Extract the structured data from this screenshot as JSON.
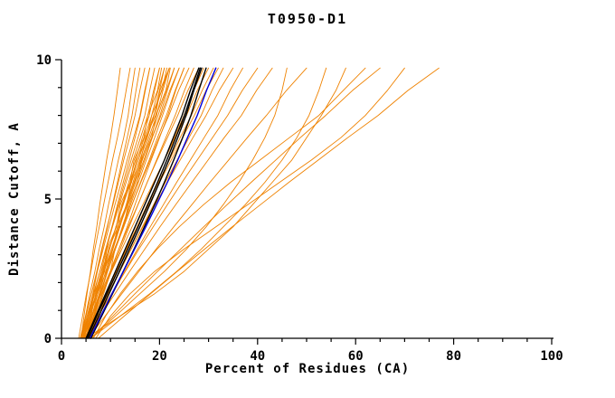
{
  "chart_data": {
    "type": "line",
    "title": "T0950-D1",
    "xlabel": "Percent of Residues (CA)",
    "ylabel": "Distance Cutoff, A",
    "xlim": [
      0,
      100
    ],
    "ylim": [
      0,
      10
    ],
    "x_major_ticks": [
      0,
      20,
      40,
      60,
      80,
      100
    ],
    "x_minor_step": 5,
    "y_major_ticks": [
      0,
      5,
      10
    ],
    "y_minor_step": 1,
    "grid": false,
    "legend": "none",
    "colors": {
      "orange": "#ef8200",
      "black": "#000000",
      "blue": "#0000dd"
    },
    "series_groups": {
      "orange": "model curves",
      "black": "highlighted model curves",
      "blue": "highlighted model curve"
    },
    "y_grid": [
      0,
      0.8,
      1.6,
      2.4,
      3.2,
      4,
      4.8,
      5.6,
      6.4,
      7.2,
      8,
      8.9,
      9.7
    ],
    "series": [
      {
        "name": "m01",
        "group": "orange",
        "x": [
          4,
          4.6,
          5.2,
          5.9,
          6.5,
          7.2,
          7.8,
          8.5,
          9.2,
          10,
          10.7,
          11.4,
          12
        ]
      },
      {
        "name": "m02",
        "group": "orange",
        "x": [
          3.5,
          4.3,
          5.1,
          6,
          6.8,
          7.7,
          8.6,
          9.5,
          10.4,
          11.4,
          12.3,
          13.2,
          14
        ]
      },
      {
        "name": "m03",
        "group": "orange",
        "x": [
          4,
          4.9,
          5.8,
          6.8,
          7.7,
          8.7,
          9.6,
          10.6,
          11.6,
          12.7,
          13.6,
          14.3,
          15
        ]
      },
      {
        "name": "m04",
        "group": "orange",
        "x": [
          4.5,
          5.4,
          6.4,
          7.3,
          8.3,
          9.4,
          10.4,
          11.4,
          12.4,
          13.4,
          14.4,
          15.2,
          16
        ]
      },
      {
        "name": "m05",
        "group": "orange",
        "x": [
          4,
          5,
          6.1,
          7.2,
          8.2,
          9.3,
          10.5,
          11.6,
          12.7,
          13.9,
          15,
          16,
          17
        ]
      },
      {
        "name": "m06",
        "group": "orange",
        "x": [
          5,
          6,
          7,
          8.1,
          9.2,
          10.3,
          11.4,
          12.6,
          13.8,
          15,
          16.1,
          17.1,
          18
        ]
      },
      {
        "name": "m07",
        "group": "orange",
        "x": [
          3.8,
          4.9,
          6.1,
          7.3,
          8.5,
          9.7,
          10.9,
          12.2,
          13.4,
          14.7,
          16,
          17,
          18
        ]
      },
      {
        "name": "m08",
        "group": "orange",
        "x": [
          4.2,
          5.4,
          6.6,
          7.8,
          9,
          10.3,
          11.6,
          12.9,
          14.2,
          15.6,
          17,
          18,
          19
        ]
      },
      {
        "name": "m09",
        "group": "orange",
        "x": [
          4,
          5.2,
          6.5,
          7.8,
          9.1,
          10.4,
          11.8,
          13.2,
          14.6,
          16.1,
          17.6,
          18.8,
          20
        ]
      },
      {
        "name": "m10",
        "group": "orange",
        "x": [
          5,
          6.2,
          7.4,
          8.6,
          9.8,
          11.1,
          12.4,
          13.7,
          15.1,
          16.5,
          17.9,
          19,
          20
        ]
      },
      {
        "name": "m11",
        "group": "orange",
        "x": [
          4.5,
          5.8,
          7.1,
          8.4,
          9.8,
          11.1,
          12.5,
          14,
          15.4,
          16.9,
          18.4,
          19.7,
          21
        ]
      },
      {
        "name": "m12",
        "group": "orange",
        "x": [
          5.5,
          6.7,
          8,
          9.2,
          10.5,
          11.9,
          13.2,
          14.6,
          16,
          17.5,
          18.9,
          20,
          21
        ]
      },
      {
        "name": "m13",
        "group": "orange",
        "x": [
          4,
          5.4,
          6.8,
          8.2,
          9.7,
          11.1,
          12.6,
          14.1,
          15.7,
          17.2,
          18.8,
          20.4,
          22
        ]
      },
      {
        "name": "m14",
        "group": "orange",
        "x": [
          5,
          6.3,
          7.7,
          9,
          10.4,
          11.9,
          13.3,
          14.8,
          16.3,
          17.8,
          19.4,
          20.7,
          22
        ]
      },
      {
        "name": "m15",
        "group": "orange",
        "x": [
          4.3,
          5.7,
          7.2,
          8.7,
          10.2,
          11.7,
          13.3,
          14.9,
          16.5,
          18.1,
          19.7,
          21.4,
          23
        ]
      },
      {
        "name": "m16",
        "group": "orange",
        "x": [
          5.2,
          6.6,
          8,
          9.4,
          10.9,
          12.4,
          13.9,
          15.4,
          17,
          18.5,
          20.1,
          21.6,
          23
        ]
      },
      {
        "name": "m17",
        "group": "orange",
        "x": [
          4,
          5.5,
          7.1,
          8.6,
          10.2,
          11.8,
          13.5,
          15.1,
          16.8,
          18.5,
          20.3,
          22.1,
          24
        ]
      },
      {
        "name": "m18",
        "group": "orange",
        "x": [
          5,
          6.5,
          7.9,
          9.4,
          11,
          12.5,
          14.1,
          15.7,
          17.3,
          19,
          20.6,
          22.3,
          24
        ]
      },
      {
        "name": "m19",
        "group": "orange",
        "x": [
          4.6,
          6.2,
          7.8,
          9.4,
          11,
          12.7,
          14.4,
          16.1,
          17.9,
          19.6,
          21.4,
          23.2,
          25
        ]
      },
      {
        "name": "m20",
        "group": "orange",
        "x": [
          5.5,
          7,
          8.6,
          10.1,
          11.7,
          13.4,
          15,
          16.6,
          18.3,
          20,
          21.7,
          23.3,
          25
        ]
      },
      {
        "name": "m21",
        "group": "orange",
        "x": [
          4,
          5.7,
          7.4,
          9.1,
          10.8,
          12.6,
          14.4,
          16.2,
          18.1,
          19.9,
          21.9,
          23.9,
          26
        ]
      },
      {
        "name": "m22",
        "group": "orange",
        "x": [
          5,
          6.7,
          8.4,
          10.2,
          12,
          13.8,
          15.6,
          17.5,
          19.4,
          21.3,
          23.2,
          25.1,
          27
        ]
      },
      {
        "name": "m23",
        "group": "orange",
        "x": [
          4.4,
          6.2,
          8,
          9.9,
          11.7,
          13.6,
          15.6,
          17.5,
          19.5,
          21.6,
          23.7,
          25.8,
          28
        ]
      },
      {
        "name": "m24",
        "group": "orange",
        "x": [
          5.8,
          7.6,
          9.4,
          11.2,
          13.1,
          15,
          17,
          19,
          21,
          23,
          25,
          27,
          29
        ]
      },
      {
        "name": "m25",
        "group": "orange",
        "x": [
          4.2,
          6.2,
          8.2,
          10.2,
          12.3,
          14.4,
          16.6,
          18.8,
          21,
          23.2,
          25.5,
          27.7,
          30
        ]
      },
      {
        "name": "m26",
        "group": "orange",
        "x": [
          5,
          7,
          9.1,
          11.1,
          13.2,
          15.4,
          17.5,
          19.8,
          22,
          24.2,
          26.5,
          28.7,
          31
        ]
      },
      {
        "name": "m27",
        "group": "orange",
        "x": [
          4.7,
          6.8,
          9,
          11.1,
          13.3,
          15.5,
          17.8,
          20,
          22.4,
          24.7,
          27.1,
          29.5,
          32
        ]
      },
      {
        "name": "m28",
        "group": "orange",
        "x": [
          5.3,
          7.5,
          9.7,
          11.9,
          14.2,
          16.5,
          18.8,
          21.2,
          23.6,
          26,
          28.5,
          30.7,
          33
        ]
      },
      {
        "name": "m29",
        "group": "orange",
        "x": [
          5,
          7.2,
          9.5,
          11.8,
          14.2,
          16.6,
          19.1,
          21.6,
          24.2,
          26.8,
          29.5,
          32.2,
          35
        ]
      },
      {
        "name": "m30",
        "group": "orange",
        "x": [
          5.5,
          7.9,
          10.4,
          12.9,
          15.5,
          18.1,
          20.8,
          23.5,
          26.3,
          29.1,
          31.9,
          34.4,
          37
        ]
      },
      {
        "name": "m31",
        "group": "orange",
        "x": [
          4.8,
          7.5,
          10.2,
          13,
          15.8,
          18.7,
          21.6,
          24.6,
          27.7,
          30.8,
          33.9,
          36.9,
          40
        ]
      },
      {
        "name": "m32",
        "group": "orange",
        "x": [
          5,
          7.9,
          10.9,
          13.9,
          17,
          20.1,
          23.3,
          26.6,
          29.9,
          33.2,
          36.7,
          39.8,
          43
        ]
      },
      {
        "name": "m33",
        "group": "orange",
        "x": [
          6,
          11,
          16,
          21,
          25.5,
          29.5,
          33,
          36.2,
          39,
          41.5,
          43.5,
          45,
          46
        ]
      },
      {
        "name": "m34",
        "group": "orange",
        "x": [
          5.5,
          8.9,
          12.3,
          15.8,
          19.3,
          22.9,
          26.6,
          30.3,
          34.1,
          37.9,
          41.8,
          45.9,
          50
        ]
      },
      {
        "name": "m35",
        "group": "orange",
        "x": [
          6,
          12,
          18,
          23.5,
          28.5,
          33,
          37.5,
          41.5,
          45,
          48,
          50.5,
          52.5,
          54
        ]
      },
      {
        "name": "m36",
        "group": "orange",
        "x": [
          5,
          12,
          19,
          25,
          30,
          35,
          39,
          43,
          47,
          50,
          53,
          56,
          58
        ]
      },
      {
        "name": "m37",
        "group": "orange",
        "x": [
          6.5,
          9,
          12,
          15.5,
          19.5,
          24,
          29,
          34.5,
          40.5,
          46.5,
          52.5,
          57.5,
          62
        ]
      },
      {
        "name": "m38",
        "group": "orange",
        "x": [
          6,
          10.5,
          15,
          19.6,
          24.3,
          29,
          33.8,
          38.7,
          43.7,
          48.7,
          53.9,
          59.4,
          65
        ]
      },
      {
        "name": "m39",
        "group": "orange",
        "x": [
          7,
          10,
          14,
          19,
          25,
          31.5,
          38,
          44.5,
          51,
          57,
          62,
          66.5,
          70
        ]
      },
      {
        "name": "m40",
        "group": "orange",
        "x": [
          7.5,
          12.8,
          18.2,
          23.6,
          29.2,
          34.8,
          40.6,
          46.4,
          52.4,
          58.4,
          64.6,
          70.7,
          77
        ]
      },
      {
        "name": "m41",
        "group": "orange",
        "x": [
          4.5,
          6,
          7,
          8.8,
          9.6,
          11.5,
          12.3,
          14.3,
          15.3,
          17.4,
          18.4,
          20.5,
          21.5
        ]
      },
      {
        "name": "m42",
        "group": "orange",
        "x": [
          5.2,
          6.1,
          7.8,
          8.6,
          10.5,
          11.4,
          13.3,
          14.2,
          16.2,
          17.1,
          19.2,
          20.1,
          22
        ]
      },
      {
        "name": "m43",
        "group": "orange",
        "x": [
          4,
          5.8,
          6.6,
          8.5,
          9.3,
          11.2,
          12,
          14,
          14.8,
          16.8,
          17.6,
          19.6,
          20.4
        ]
      },
      {
        "name": "m44",
        "group": "orange",
        "x": [
          6,
          7.4,
          8.3,
          10,
          10.9,
          12.7,
          13.6,
          15.5,
          16.4,
          18.4,
          19.3,
          21.3,
          22.2
        ]
      },
      {
        "name": "b01",
        "group": "black",
        "x": [
          5,
          7,
          9,
          11,
          13,
          15,
          17,
          19,
          21,
          22.8,
          24.6,
          26.3,
          28
        ]
      },
      {
        "name": "b02",
        "group": "black",
        "x": [
          5.5,
          7.6,
          9.7,
          11.8,
          13.9,
          16,
          18,
          20,
          21.9,
          23.7,
          25.4,
          27,
          28.6
        ]
      },
      {
        "name": "b03",
        "group": "black",
        "x": [
          6,
          8.2,
          10.4,
          12.6,
          14.8,
          16.9,
          19,
          21,
          22.9,
          24.7,
          26.4,
          28,
          29.5
        ]
      },
      {
        "name": "b04",
        "group": "black",
        "x": [
          5.2,
          7.2,
          9.3,
          11.4,
          13.5,
          15.6,
          17.6,
          19.6,
          21.5,
          23.3,
          25.1,
          26.8,
          28.3
        ]
      },
      {
        "name": "sel",
        "group": "blue",
        "x": [
          5.8,
          8,
          10.3,
          12.6,
          14.9,
          17.2,
          19.4,
          21.6,
          23.7,
          25.7,
          27.7,
          29.6,
          31.5
        ]
      }
    ]
  }
}
